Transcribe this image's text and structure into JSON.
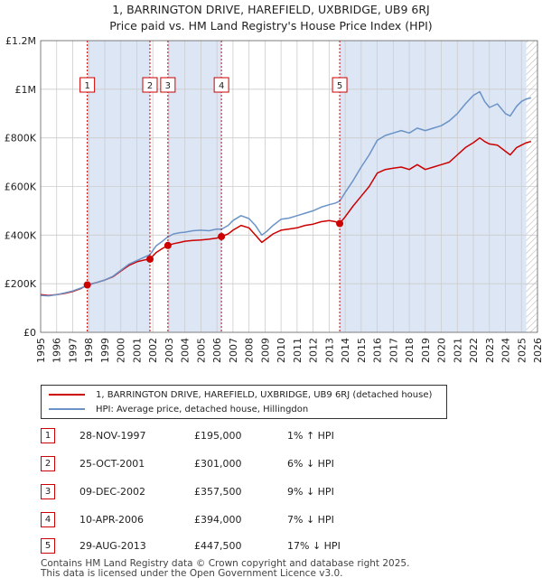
{
  "title_line1": "1, BARRINGTON DRIVE, HAREFIELD, UXBRIDGE, UB9 6RJ",
  "title_line2": "Price paid vs. HM Land Registry's House Price Index (HPI)",
  "colors": {
    "property": "#cc0000",
    "hpi": "#6b93c8",
    "shade": "#dde6f4",
    "grid": "#cccccc"
  },
  "legend": {
    "property_label": "1, BARRINGTON DRIVE, HAREFIELD, UXBRIDGE, UB9 6RJ (detached house)",
    "hpi_label": "HPI: Average price, detached house, Hillingdon"
  },
  "transactions": [
    {
      "num": "1",
      "date": "28-NOV-1997",
      "price": "£195,000",
      "hpi": "1% ↑ HPI"
    },
    {
      "num": "2",
      "date": "25-OCT-2001",
      "price": "£301,000",
      "hpi": "6% ↓ HPI"
    },
    {
      "num": "3",
      "date": "09-DEC-2002",
      "price": "£357,500",
      "hpi": "9% ↓ HPI"
    },
    {
      "num": "4",
      "date": "10-APR-2006",
      "price": "£394,000",
      "hpi": "7% ↓ HPI"
    },
    {
      "num": "5",
      "date": "29-AUG-2013",
      "price": "£447,500",
      "hpi": "17% ↓ HPI"
    }
  ],
  "footer_line1": "Contains HM Land Registry data © Crown copyright and database right 2025.",
  "footer_line2": "This data is licensed under the Open Government Licence v3.0.",
  "chart_data": {
    "type": "line",
    "title": "1, BARRINGTON DRIVE, HAREFIELD, UXBRIDGE, UB9 6RJ — Price paid vs. HM Land Registry's House Price Index (HPI)",
    "xlabel": "",
    "ylabel": "",
    "xlim": [
      1995,
      2026
    ],
    "ylim": [
      0,
      1200000
    ],
    "y_ticks": [
      0,
      200000,
      400000,
      600000,
      800000,
      1000000,
      1200000
    ],
    "y_tick_labels": [
      "£0",
      "£200K",
      "£400K",
      "£600K",
      "£800K",
      "£1M",
      "£1.2M"
    ],
    "x_ticks": [
      1995,
      1996,
      1997,
      1998,
      1999,
      2000,
      2001,
      2002,
      2003,
      2004,
      2005,
      2006,
      2007,
      2008,
      2009,
      2010,
      2011,
      2012,
      2013,
      2014,
      2015,
      2016,
      2017,
      2018,
      2019,
      2020,
      2021,
      2022,
      2023,
      2024,
      2025,
      2026
    ],
    "grid": true,
    "legend_position": "below",
    "shaded_ranges": [
      [
        1997.91,
        2001.82
      ],
      [
        2002.94,
        2006.28
      ],
      [
        2013.66,
        2025.3
      ]
    ],
    "forecast_after": 2025.3,
    "sales": [
      {
        "label": "1",
        "x": 1997.91,
        "y": 195000
      },
      {
        "label": "2",
        "x": 2001.82,
        "y": 301000
      },
      {
        "label": "3",
        "x": 2002.94,
        "y": 357500
      },
      {
        "label": "4",
        "x": 2006.28,
        "y": 394000
      },
      {
        "label": "5",
        "x": 2013.66,
        "y": 447500
      }
    ],
    "series": [
      {
        "name": "1, BARRINGTON DRIVE, HAREFIELD, UXBRIDGE, UB9 6RJ (detached house)",
        "color": "#cc0000",
        "x": [
          1995,
          1995.5,
          1996,
          1996.5,
          1997,
          1997.5,
          1997.91,
          1998.5,
          1999,
          1999.5,
          2000,
          2000.5,
          2001,
          2001.5,
          2001.82,
          2002.2,
          2002.6,
          2002.94,
          2003.3,
          2003.7,
          2004,
          2004.5,
          2005,
          2005.5,
          2006,
          2006.28,
          2006.7,
          2007,
          2007.5,
          2008,
          2008.4,
          2008.8,
          2009.1,
          2009.5,
          2010,
          2010.5,
          2011,
          2011.5,
          2012,
          2012.5,
          2013,
          2013.4,
          2013.66,
          2014,
          2014.5,
          2015,
          2015.5,
          2016,
          2016.5,
          2017,
          2017.5,
          2018,
          2018.5,
          2019,
          2019.5,
          2020,
          2020.5,
          2021,
          2021.5,
          2022,
          2022.4,
          2022.7,
          2023,
          2023.5,
          2024,
          2024.3,
          2024.7,
          2025,
          2025.3,
          2025.6
        ],
        "y": [
          155000,
          152000,
          155000,
          160000,
          168000,
          180000,
          195000,
          205000,
          215000,
          228000,
          252000,
          275000,
          290000,
          298000,
          301000,
          328000,
          345000,
          357500,
          365000,
          370000,
          375000,
          378000,
          380000,
          383000,
          388000,
          394000,
          405000,
          420000,
          440000,
          430000,
          400000,
          370000,
          385000,
          405000,
          420000,
          425000,
          430000,
          440000,
          445000,
          455000,
          460000,
          455000,
          447500,
          475000,
          520000,
          560000,
          600000,
          655000,
          670000,
          675000,
          680000,
          670000,
          690000,
          670000,
          680000,
          690000,
          700000,
          730000,
          760000,
          780000,
          800000,
          785000,
          775000,
          770000,
          745000,
          730000,
          760000,
          770000,
          780000,
          785000
        ]
      },
      {
        "name": "HPI: Average price, detached house, Hillingdon",
        "color": "#6b93c8",
        "x": [
          1995,
          1995.5,
          1996,
          1996.5,
          1997,
          1997.5,
          1997.91,
          1998.5,
          1999,
          1999.5,
          2000,
          2000.5,
          2001,
          2001.5,
          2001.82,
          2002.2,
          2002.6,
          2002.94,
          2003.3,
          2003.7,
          2004,
          2004.5,
          2005,
          2005.5,
          2006,
          2006.28,
          2006.7,
          2007,
          2007.5,
          2008,
          2008.4,
          2008.8,
          2009.1,
          2009.5,
          2010,
          2010.5,
          2011,
          2011.5,
          2012,
          2012.5,
          2013,
          2013.4,
          2013.66,
          2014,
          2014.5,
          2015,
          2015.5,
          2016,
          2016.5,
          2017,
          2017.5,
          2018,
          2018.5,
          2019,
          2019.5,
          2020,
          2020.5,
          2021,
          2021.5,
          2022,
          2022.4,
          2022.7,
          2023,
          2023.5,
          2024,
          2024.3,
          2024.7,
          2025,
          2025.3,
          2025.6
        ],
        "y": [
          152000,
          150000,
          155000,
          162000,
          170000,
          182000,
          193000,
          205000,
          215000,
          230000,
          255000,
          280000,
          295000,
          310000,
          320000,
          355000,
          375000,
          393000,
          405000,
          410000,
          412000,
          418000,
          420000,
          418000,
          425000,
          424000,
          440000,
          460000,
          480000,
          468000,
          440000,
          400000,
          415000,
          440000,
          465000,
          470000,
          480000,
          490000,
          500000,
          515000,
          525000,
          532000,
          540000,
          575000,
          625000,
          680000,
          730000,
          790000,
          810000,
          820000,
          830000,
          820000,
          840000,
          830000,
          840000,
          850000,
          870000,
          900000,
          940000,
          975000,
          990000,
          950000,
          925000,
          940000,
          900000,
          890000,
          930000,
          950000,
          960000,
          965000
        ]
      }
    ]
  }
}
